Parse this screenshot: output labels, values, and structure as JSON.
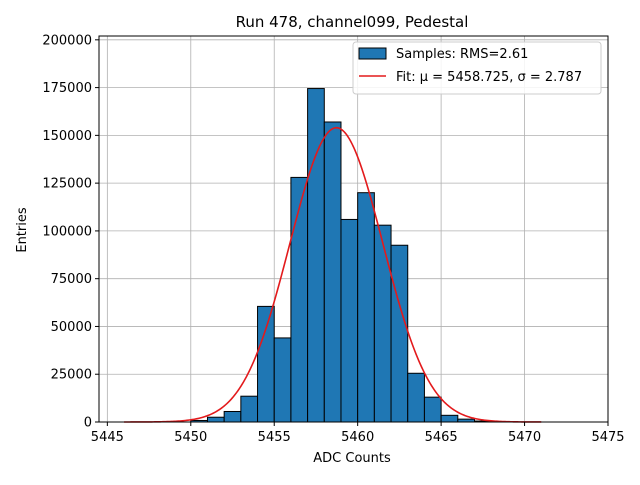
{
  "chart_data": {
    "type": "bar",
    "title": "Run 478, channel099, Pedestal",
    "xlabel": "ADC Counts",
    "ylabel": "Entries",
    "xlim": [
      5444.5,
      5475
    ],
    "ylim": [
      0,
      202000
    ],
    "xticks": [
      5445,
      5450,
      5455,
      5460,
      5465,
      5470,
      5475
    ],
    "yticks": [
      0,
      25000,
      50000,
      75000,
      100000,
      125000,
      150000,
      175000,
      200000
    ],
    "grid": true,
    "legend_position": "top-right",
    "bin_width": 1,
    "bins": [
      {
        "left": 5450,
        "value": 800
      },
      {
        "left": 5451,
        "value": 2500
      },
      {
        "left": 5452,
        "value": 5500
      },
      {
        "left": 5453,
        "value": 13500
      },
      {
        "left": 5454,
        "value": 60500
      },
      {
        "left": 5455,
        "value": 44000
      },
      {
        "left": 5456,
        "value": 128000
      },
      {
        "left": 5457,
        "value": 174500
      },
      {
        "left": 5458,
        "value": 157000
      },
      {
        "left": 5459,
        "value": 106000
      },
      {
        "left": 5460,
        "value": 120000
      },
      {
        "left": 5461,
        "value": 103000
      },
      {
        "left": 5462,
        "value": 92500
      },
      {
        "left": 5463,
        "value": 25500
      },
      {
        "left": 5464,
        "value": 13000
      },
      {
        "left": 5465,
        "value": 3500
      },
      {
        "left": 5466,
        "value": 1500
      },
      {
        "left": 5467,
        "value": 500
      },
      {
        "left": 5468,
        "value": 200
      }
    ],
    "fit": {
      "mu": 5458.725,
      "sigma": 2.787,
      "amplitude": 154000,
      "x_range": [
        5446,
        5471
      ]
    },
    "series": [
      {
        "name": "Samples: RMS=2.61",
        "type": "histogram",
        "color": "#1f77b4"
      },
      {
        "name": "Fit: μ = 5458.725, σ = 2.787",
        "type": "line",
        "color": "#e31a1c"
      }
    ]
  }
}
